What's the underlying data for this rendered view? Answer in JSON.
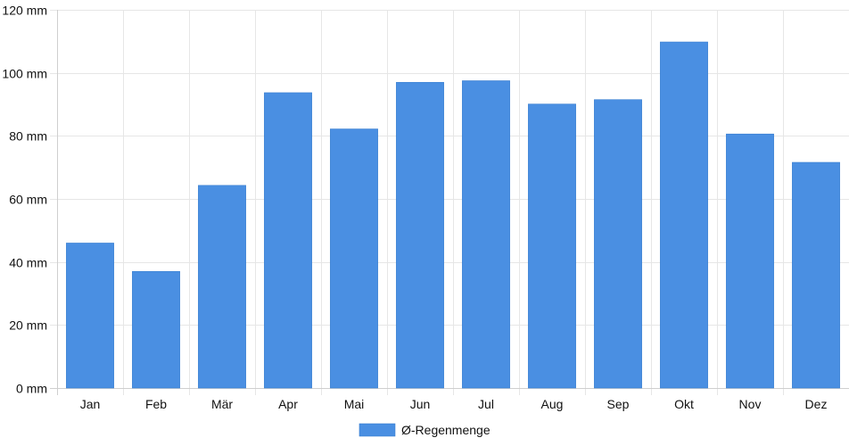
{
  "chart_data": {
    "type": "bar",
    "categories": [
      "Jan",
      "Feb",
      "Mär",
      "Apr",
      "Mai",
      "Jun",
      "Jul",
      "Aug",
      "Sep",
      "Okt",
      "Nov",
      "Dez"
    ],
    "series": [
      {
        "name": "Ø-Regenmenge",
        "values": [
          46,
          37,
          64.3,
          93.7,
          82.2,
          97,
          97.5,
          90.1,
          91.5,
          109.8,
          80.6,
          71.6
        ],
        "color": "#4a8fe2"
      }
    ],
    "y_ticks": [
      "0 mm",
      "20 mm",
      "40 mm",
      "60 mm",
      "80 mm",
      "100 mm",
      "120 mm"
    ],
    "ylim": [
      0,
      120
    ],
    "grid": true,
    "legend_position": "bottom",
    "colors": {
      "grid": "#e6e6e6",
      "axis": "#cfcfcf",
      "bar": "#4a8fe2",
      "bar_border": "#3a7fd0",
      "text": "#111111"
    }
  }
}
